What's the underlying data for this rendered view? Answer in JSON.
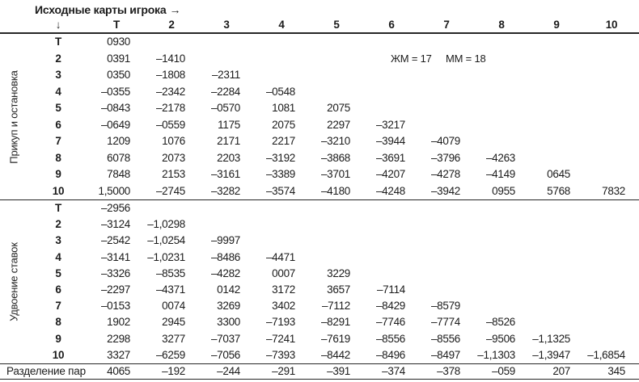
{
  "header": {
    "title": "Исходные карты игрока",
    "right_arrow": "→",
    "down_arrow": "↓",
    "columns": [
      "Т",
      "2",
      "3",
      "4",
      "5",
      "6",
      "7",
      "8",
      "9",
      "10"
    ]
  },
  "annotations": {
    "zhm": "ЖМ = 17",
    "mm": "ММ = 18"
  },
  "sections": [
    {
      "label": "Прикуп и остановка",
      "rows": [
        {
          "label": "Т",
          "values": [
            "0930",
            "",
            "",
            "",
            "",
            "",
            "",
            "",
            "",
            ""
          ]
        },
        {
          "label": "2",
          "values": [
            "0391",
            "–1410",
            "",
            "",
            "",
            "ЖМ = 17",
            "ММ = 18",
            "",
            "",
            ""
          ]
        },
        {
          "label": "3",
          "values": [
            "0350",
            "–1808",
            "–2311",
            "",
            "",
            "",
            "",
            "",
            "",
            ""
          ]
        },
        {
          "label": "4",
          "values": [
            "–0355",
            "–2342",
            "–2284",
            "–0548",
            "",
            "",
            "",
            "",
            "",
            ""
          ]
        },
        {
          "label": "5",
          "values": [
            "–0843",
            "–2178",
            "–0570",
            "1081",
            "2075",
            "",
            "",
            "",
            "",
            ""
          ]
        },
        {
          "label": "6",
          "values": [
            "–0649",
            "–0559",
            "1175",
            "2075",
            "2297",
            "–3217",
            "",
            "",
            "",
            ""
          ]
        },
        {
          "label": "7",
          "values": [
            "1209",
            "1076",
            "2171",
            "2217",
            "–3210",
            "–3944",
            "–4079",
            "",
            "",
            ""
          ]
        },
        {
          "label": "8",
          "values": [
            "6078",
            "2073",
            "2203",
            "–3192",
            "–3868",
            "–3691",
            "–3796",
            "–4263",
            "",
            ""
          ]
        },
        {
          "label": "9",
          "values": [
            "7848",
            "2153",
            "–3161",
            "–3389",
            "–3701",
            "–4207",
            "–4278",
            "–4149",
            "0645",
            ""
          ]
        },
        {
          "label": "10",
          "values": [
            "1,5000",
            "–2745",
            "–3282",
            "–3574",
            "–4180",
            "–4248",
            "–3942",
            "0955",
            "5768",
            "7832"
          ]
        }
      ]
    },
    {
      "label": "Удвоение ставок",
      "rows": [
        {
          "label": "Т",
          "values": [
            "–2956",
            "",
            "",
            "",
            "",
            "",
            "",
            "",
            "",
            ""
          ]
        },
        {
          "label": "2",
          "values": [
            "–3124",
            "–1,0298",
            "",
            "",
            "",
            "",
            "",
            "",
            "",
            ""
          ]
        },
        {
          "label": "3",
          "values": [
            "–2542",
            "–1,0254",
            "–9997",
            "",
            "",
            "",
            "",
            "",
            "",
            ""
          ]
        },
        {
          "label": "4",
          "values": [
            "–3141",
            "–1,0231",
            "–8486",
            "–4471",
            "",
            "",
            "",
            "",
            "",
            ""
          ]
        },
        {
          "label": "5",
          "values": [
            "–3326",
            "–8535",
            "–4282",
            "0007",
            "3229",
            "",
            "",
            "",
            "",
            ""
          ]
        },
        {
          "label": "6",
          "values": [
            "–2297",
            "–4371",
            "0142",
            "3172",
            "3657",
            "–7114",
            "",
            "",
            "",
            ""
          ]
        },
        {
          "label": "7",
          "values": [
            "–0153",
            "0074",
            "3269",
            "3402",
            "–7112",
            "–8429",
            "–8579",
            "",
            "",
            ""
          ]
        },
        {
          "label": "8",
          "values": [
            "1902",
            "2945",
            "3300",
            "–7193",
            "–8291",
            "–7746",
            "–7774",
            "–8526",
            "",
            ""
          ]
        },
        {
          "label": "9",
          "values": [
            "2298",
            "3277",
            "–7037",
            "–7241",
            "–7619",
            "–8556",
            "–8556",
            "–9506",
            "–1,1325",
            ""
          ]
        },
        {
          "label": "10",
          "values": [
            "3327",
            "–6259",
            "–7056",
            "–7393",
            "–8442",
            "–8496",
            "–8497",
            "–1,1303",
            "–1,3947",
            "–1,6854"
          ]
        }
      ]
    }
  ],
  "footer": {
    "label": "Разделение пар",
    "values": [
      "4065",
      "–192",
      "–244",
      "–291",
      "–391",
      "–374",
      "–378",
      "–059",
      "207",
      "345"
    ]
  }
}
